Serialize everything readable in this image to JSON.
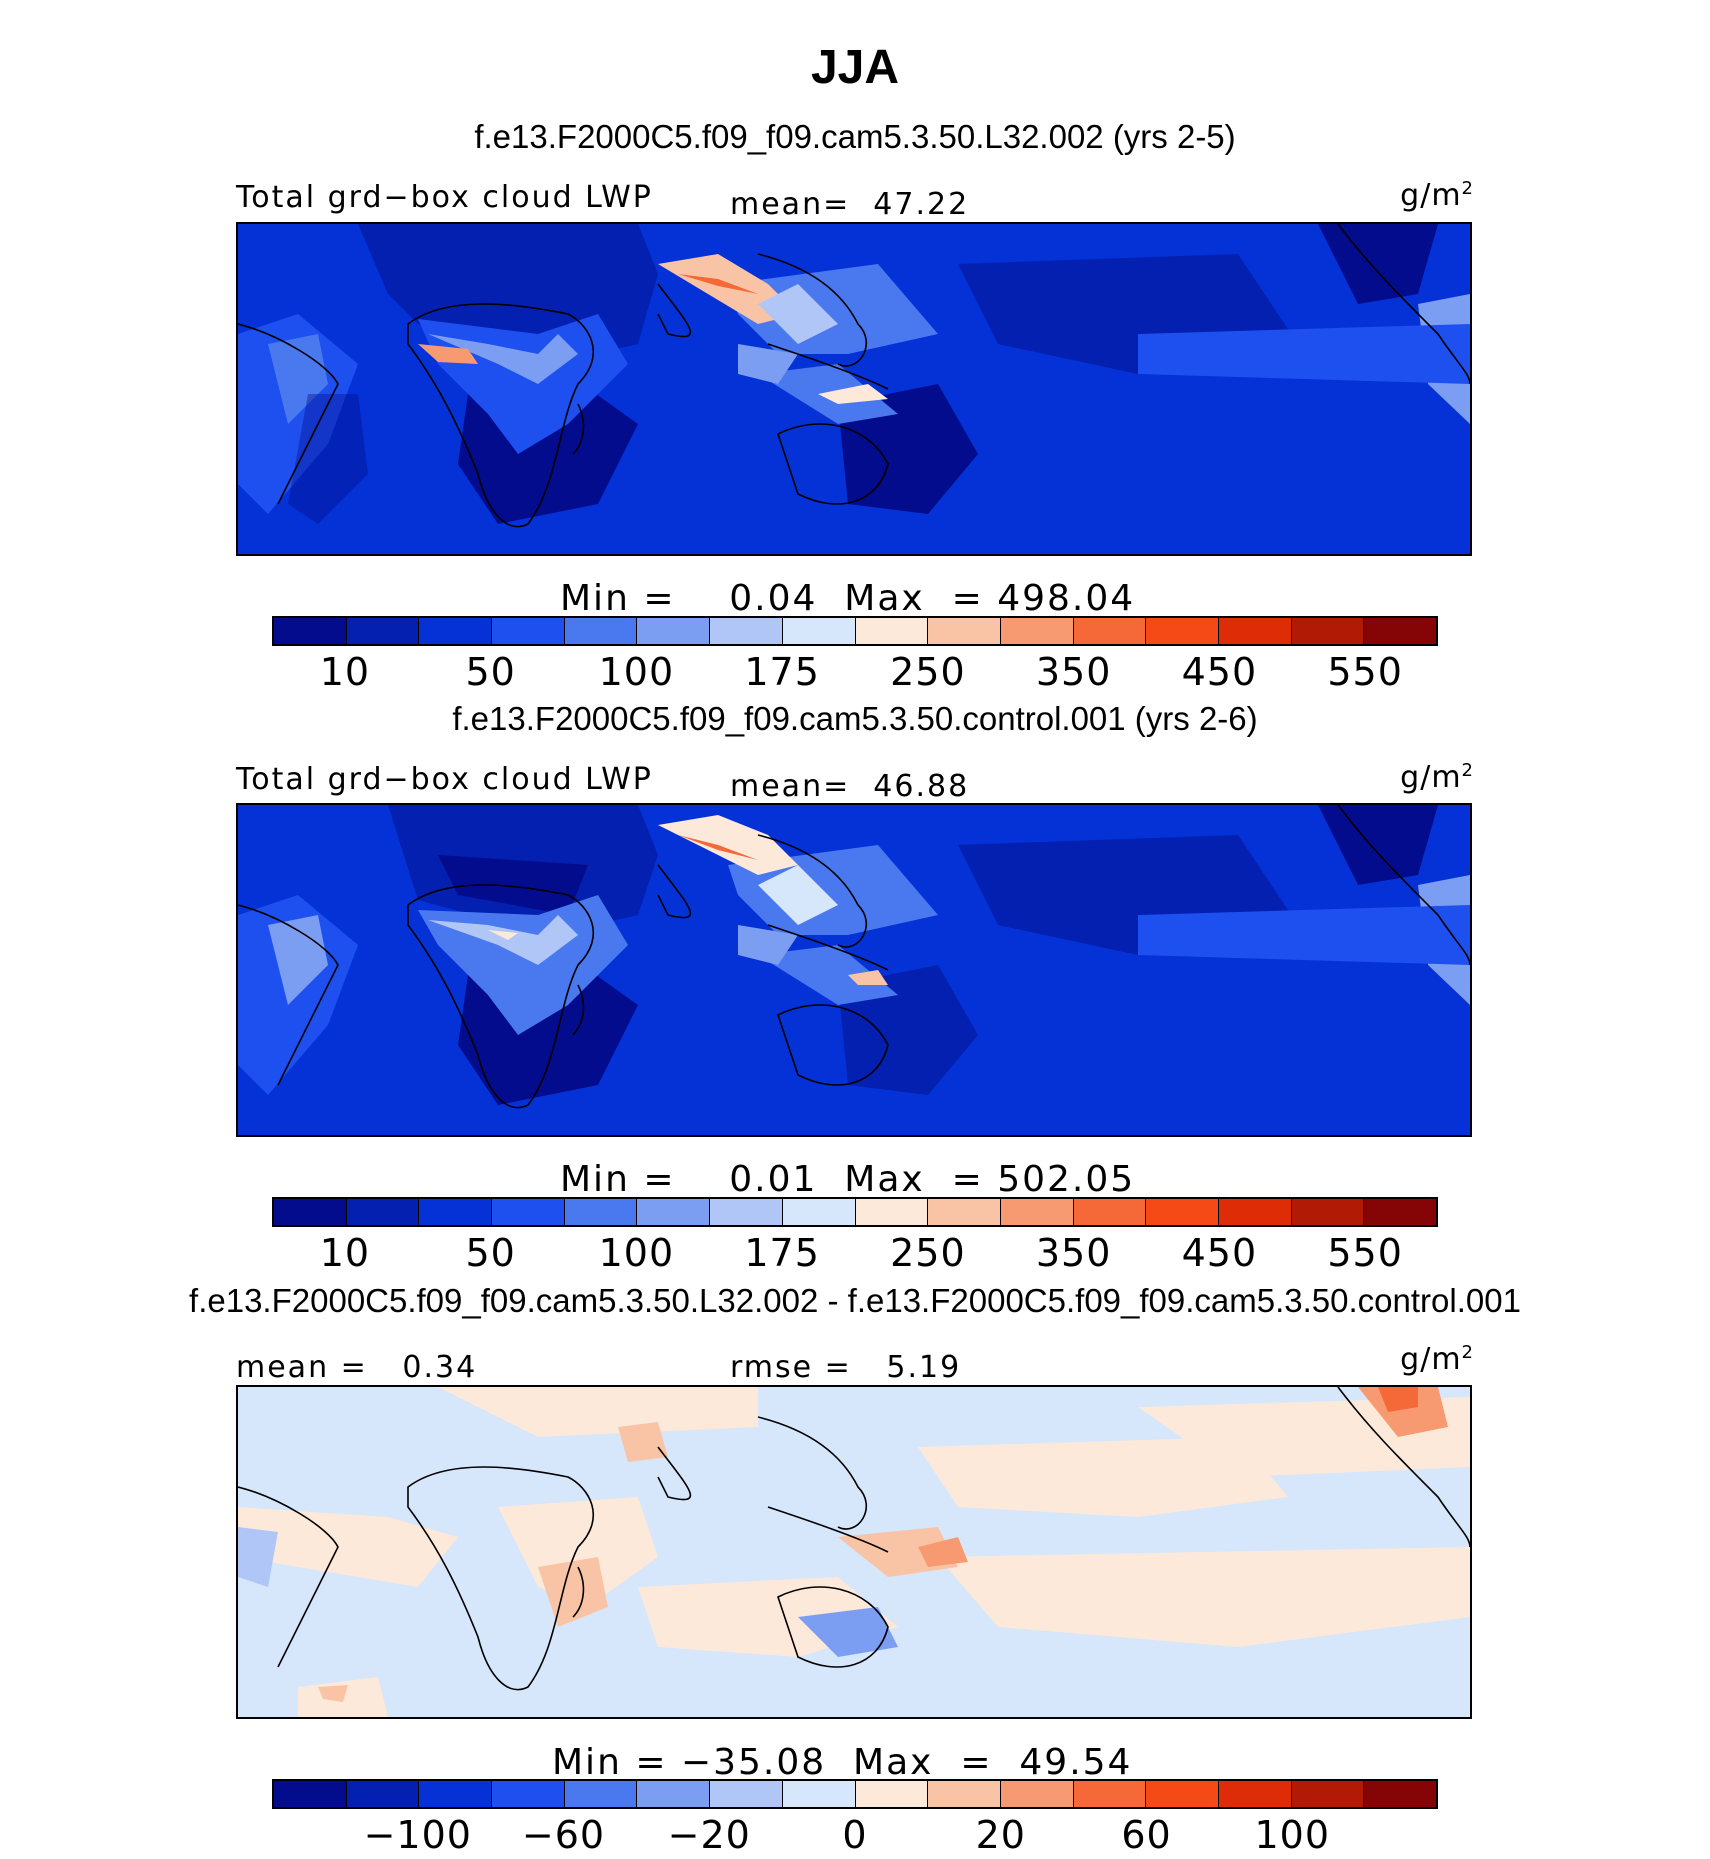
{
  "title": "JJA",
  "colors": {
    "lwp_scale": [
      "#030c8c",
      "#0320b0",
      "#0432d6",
      "#1e50f0",
      "#4a78ef",
      "#7c9ef2",
      "#b0c6f6",
      "#d6e6fb",
      "#fde9da",
      "#f9c4a6",
      "#f79a72",
      "#f56838",
      "#f54a16",
      "#dd2c06",
      "#b11a05",
      "#850406"
    ],
    "diff_scale": [
      "#030c8c",
      "#0320b0",
      "#0432d6",
      "#1e50f0",
      "#4a78ef",
      "#7c9ef2",
      "#b0c6f6",
      "#d6e6fb",
      "#fde9da",
      "#f9c4a6",
      "#f79a72",
      "#f56838",
      "#f54a16",
      "#dd2c06",
      "#b11a05",
      "#850406"
    ]
  },
  "panels": [
    {
      "run_title": "f.e13.F2000C5.f09_f09.cam5.3.50.L32.002 (yrs 2-5)",
      "left_label": "Total grd−box cloud LWP",
      "center_label": "mean=  47.22",
      "units": "g/m",
      "units_sup": "2",
      "minmax": "Min =    0.04  Max  = 498.04",
      "cbar_labels": [
        "10",
        "50",
        "100",
        "175",
        "250",
        "350",
        "450",
        "550"
      ],
      "field": "lwp1"
    },
    {
      "run_title": "f.e13.F2000C5.f09_f09.cam5.3.50.control.001 (yrs 2-6)",
      "left_label": "Total grd−box cloud LWP",
      "center_label": "mean=  46.88",
      "units": "g/m",
      "units_sup": "2",
      "minmax": "Min =    0.01  Max  = 502.05",
      "cbar_labels": [
        "10",
        "50",
        "100",
        "175",
        "250",
        "350",
        "450",
        "550"
      ],
      "field": "lwp2"
    },
    {
      "run_title": "f.e13.F2000C5.f09_f09.cam5.3.50.L32.002 - f.e13.F2000C5.f09_f09.cam5.3.50.control.001",
      "left_label": "mean =   0.34",
      "center_label": "rmse =   5.19",
      "units": "g/m",
      "units_sup": "2",
      "minmax": "Min = −35.08  Max  =  49.54",
      "cbar_labels": [
        "−100",
        "−60",
        "−20",
        "0",
        "20",
        "60",
        "100"
      ],
      "field": "diff"
    }
  ]
}
